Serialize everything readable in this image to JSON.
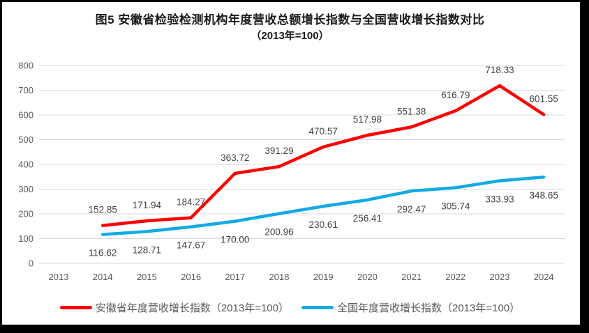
{
  "title": {
    "line1": "图5  安徽省检验检测机构年度营收总额增长指数与全国营收增长指数对比",
    "line2": "（2013年=100）"
  },
  "chart_data": {
    "type": "line",
    "title": "图5 安徽省检验检测机构年度营收总额增长指数与全国营收增长指数对比（2013年=100）",
    "categories": [
      2013,
      2014,
      2015,
      2016,
      2017,
      2018,
      2019,
      2020,
      2021,
      2022,
      2023,
      2024
    ],
    "series": [
      {
        "name": "安徽省年度营收增长指数（2013年=100）",
        "color": "#fe0000",
        "start_year": 2014,
        "values": [
          152.85,
          171.94,
          184.27,
          363.72,
          391.29,
          470.57,
          517.98,
          551.38,
          616.79,
          718.33,
          601.55
        ],
        "labels": [
          "152.85",
          "171.94",
          "184.27",
          "363.72",
          "391.29",
          "470.57",
          "517.98",
          "551.38",
          "616.79",
          "718.33",
          "601.55"
        ],
        "label_side": "above"
      },
      {
        "name": "全国年度营收增长指数（2013年=100）",
        "color": "#12aae3",
        "start_year": 2014,
        "values": [
          116.62,
          128.71,
          147.67,
          170.0,
          200.96,
          230.61,
          256.41,
          292.47,
          305.74,
          333.93,
          348.65
        ],
        "labels": [
          "116.62",
          "128.71",
          "147.67",
          "170.00",
          "200.96",
          "230.61",
          "256.41",
          "292.47",
          "305.74",
          "333.93",
          "348.65"
        ],
        "label_side": "below"
      }
    ],
    "xlabel": "",
    "ylabel": "",
    "ylim": [
      0,
      800
    ],
    "y_tick_step": 100,
    "grid": true,
    "legend_position": "bottom",
    "colors": {
      "gridline": "#d9d9d9",
      "axis_text": "#595959",
      "data_label_text": "#3f3f3f",
      "frame_border": "#000000"
    }
  }
}
